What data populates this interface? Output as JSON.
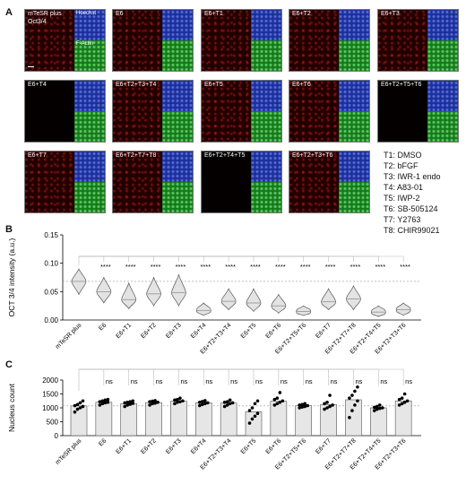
{
  "panels": {
    "a": "A",
    "b": "B",
    "c": "C"
  },
  "micrographs": [
    {
      "label": "mTeSR plus",
      "stain": "Oct3/4",
      "inset_top": "Hoechst",
      "inset_bottom": "F-Actin"
    },
    {
      "label": "E6"
    },
    {
      "label": "E6+T1"
    },
    {
      "label": "E6+T2"
    },
    {
      "label": "E6+T3"
    },
    {
      "label": "E6+T4"
    },
    {
      "label": "E6+T2+T3+T4"
    },
    {
      "label": "E6+T5"
    },
    {
      "label": "E6+T6"
    },
    {
      "label": "E6+T2+T5+T6"
    },
    {
      "label": "E6+T7"
    },
    {
      "label": "E6+T2+T7+T8"
    },
    {
      "label": "E6+T2+T4+T5"
    },
    {
      "label": "E6+T2+T3+T6"
    }
  ],
  "treatment_legend": [
    "T1: DMSO",
    "T2: bFGF",
    "T3: IWR-1 endo",
    "T4: A83-01",
    "T5: IWP-2",
    "T6: SB-505124",
    "T7: Y2763",
    "T8: CHIR99021"
  ],
  "chart_data": [
    {
      "type": "violin",
      "ylabel": "OCT 3/4 intensity (a.u.)",
      "ylim": [
        0,
        0.15
      ],
      "yticks": [
        "0.00",
        "0.05",
        "0.10",
        "0.15"
      ],
      "reference_line": 0.068,
      "categories": [
        "mTeSR plus",
        "E6",
        "E6+T1",
        "E6+T2",
        "E6+T3",
        "E6+T4",
        "E6+T2+T3+T4",
        "E6+T5",
        "E6+T6",
        "E6+T2+T5+T6",
        "E6+T7",
        "E6+T2+T7+T8",
        "E6+T2+T4+T5",
        "E6+T2+T3+T6"
      ],
      "median": [
        0.068,
        0.05,
        0.036,
        0.046,
        0.048,
        0.017,
        0.033,
        0.03,
        0.025,
        0.015,
        0.032,
        0.037,
        0.014,
        0.018
      ],
      "min": [
        0.045,
        0.03,
        0.02,
        0.025,
        0.025,
        0.008,
        0.018,
        0.015,
        0.012,
        0.008,
        0.018,
        0.018,
        0.006,
        0.008
      ],
      "max": [
        0.09,
        0.075,
        0.065,
        0.075,
        0.08,
        0.03,
        0.055,
        0.055,
        0.045,
        0.025,
        0.055,
        0.06,
        0.025,
        0.03
      ],
      "significance": [
        "",
        "****",
        "****",
        "****",
        "****",
        "****",
        "****",
        "****",
        "****",
        "****",
        "****",
        "****",
        "****",
        "****"
      ]
    },
    {
      "type": "bar",
      "ylabel": "Nucleus count",
      "ylim": [
        0,
        2000
      ],
      "yticks": [
        "0",
        "500",
        "1000",
        "1500",
        "2000"
      ],
      "reference_line": 1070,
      "categories": [
        "mTeSR plus",
        "E6",
        "E6+T1",
        "E6+T2",
        "E6+T3",
        "E6+T4",
        "E6+T2+T3+T4",
        "E6+T5",
        "E6+T6",
        "E6+T2+T5+T6",
        "E6+T7",
        "E6+T2+T7+T8",
        "E6+T2+T4+T5",
        "E6+T2+T3+T6"
      ],
      "values": [
        1070,
        1200,
        1150,
        1190,
        1240,
        1180,
        1170,
        860,
        1240,
        1080,
        1120,
        1290,
        1000,
        1250
      ],
      "points": [
        [
          850,
          950,
          1000,
          1050,
          1080,
          1120,
          1180,
          1250
        ],
        [
          1100,
          1150,
          1180,
          1200,
          1220,
          1250,
          1280,
          1300
        ],
        [
          1050,
          1100,
          1130,
          1160,
          1180,
          1200,
          1220,
          1250
        ],
        [
          1100,
          1150,
          1170,
          1200,
          1220,
          1240,
          1260
        ],
        [
          1150,
          1200,
          1220,
          1250,
          1280,
          1300,
          1350
        ],
        [
          1080,
          1120,
          1150,
          1180,
          1200,
          1230,
          1260
        ],
        [
          1050,
          1100,
          1150,
          1180,
          1200,
          1220,
          1280
        ],
        [
          450,
          600,
          700,
          800,
          900,
          1000,
          1150,
          1250
        ],
        [
          1100,
          1150,
          1200,
          1250,
          1300,
          1350,
          1550
        ],
        [
          1000,
          1030,
          1050,
          1080,
          1100,
          1120,
          1150
        ],
        [
          950,
          1000,
          1050,
          1100,
          1150,
          1200,
          1450
        ],
        [
          650,
          900,
          1100,
          1250,
          1350,
          1450,
          1600,
          1750
        ],
        [
          900,
          950,
          980,
          1000,
          1020,
          1050,
          1100
        ],
        [
          1100,
          1150,
          1200,
          1250,
          1300,
          1350,
          1500
        ]
      ],
      "significance": [
        "",
        "ns",
        "ns",
        "ns",
        "ns",
        "ns",
        "ns",
        "ns",
        "ns",
        "ns",
        "ns",
        "ns",
        "ns",
        "ns"
      ]
    }
  ]
}
